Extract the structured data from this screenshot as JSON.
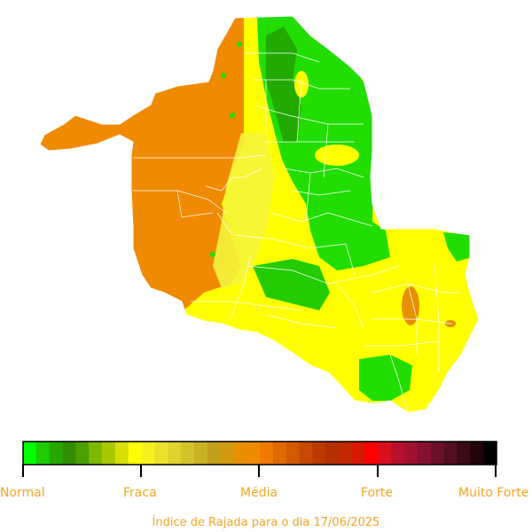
{
  "map": {
    "region": "Rondônia",
    "colors": {
      "orange": "#f08a00",
      "yellow": "#ffff00",
      "light_yellow": "#f5f53a",
      "green": "#22dd00",
      "dark_green": "#22aa00",
      "border": "#ffffff",
      "blob_outline": "#8a8a1a"
    }
  },
  "legend": {
    "colors": [
      "#00ff00",
      "#1ecc00",
      "#27a800",
      "#2f8f00",
      "#4aa000",
      "#7fb800",
      "#a8c800",
      "#d5e000",
      "#ffff00",
      "#f5f020",
      "#ece22a",
      "#e0d32c",
      "#d4c42a",
      "#c9b224",
      "#c2a01c",
      "#d39a10",
      "#e69000",
      "#f08a00",
      "#f07a00",
      "#e06a00",
      "#d35a00",
      "#c74a00",
      "#bb3a00",
      "#b53000",
      "#c02800",
      "#d81800",
      "#ff0000",
      "#d8101e",
      "#b8102a",
      "#a01030",
      "#861030",
      "#6a1028",
      "#521020",
      "#3a0a16",
      "#200408",
      "#000000"
    ],
    "labels": [
      "Normal",
      "Fraca",
      "Média",
      "Forte",
      "Muito Forte"
    ]
  },
  "caption": "Índice de Rajada para o dia 17/06/2025"
}
